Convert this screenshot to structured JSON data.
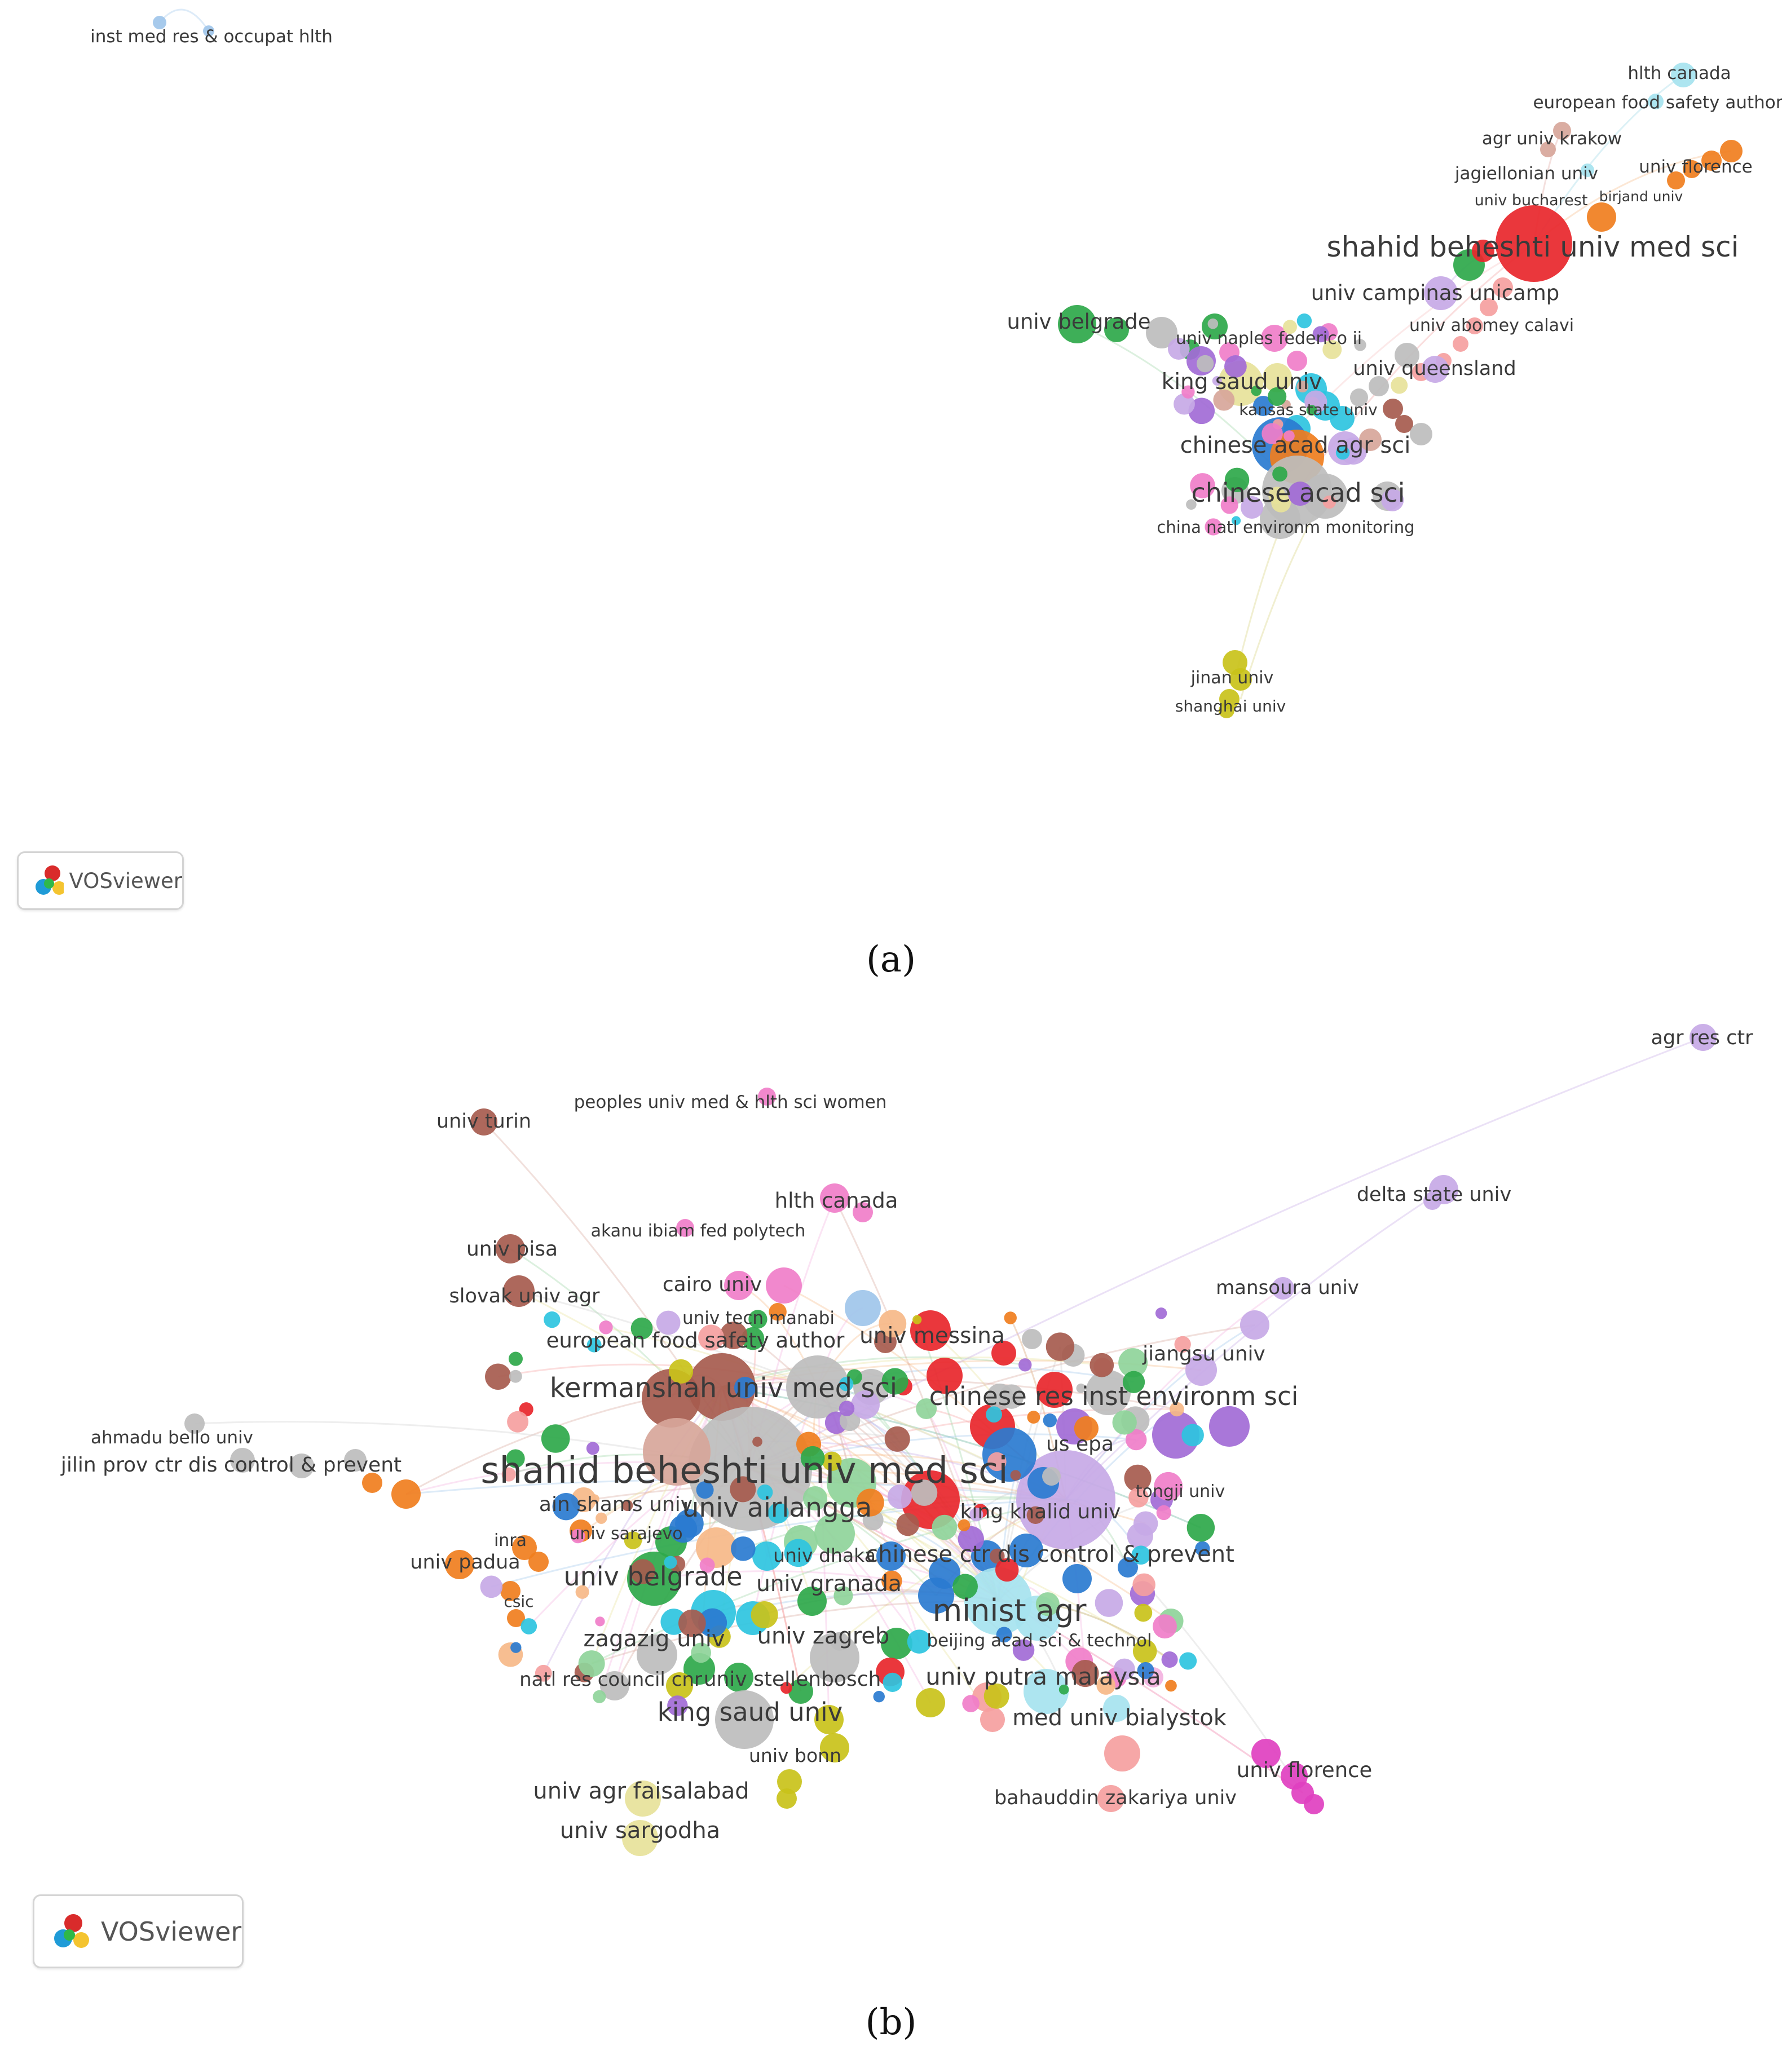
{
  "app_name": "VOSviewer",
  "panels": [
    {
      "id": "a",
      "caption": "(a)",
      "labels": [
        "inst med res & occupat hlth",
        "hlth canada",
        "european food safety author",
        "agr univ krakow",
        "jagiellonian univ",
        "univ florence",
        "univ bucharest",
        "birjand univ",
        "shahid beheshti univ med sci",
        "univ campinas unicamp",
        "univ belgrade",
        "univ abomey calavi",
        "univ naples federico ii",
        "king saud univ",
        "univ queensland",
        "kansas state univ",
        "chinese acad agr sci",
        "chinese acad sci",
        "china natl environm monitoring",
        "jinan univ",
        "shanghai univ"
      ]
    },
    {
      "id": "b",
      "caption": "(b)",
      "labels": [
        "agr res ctr",
        "univ turin",
        "peoples univ med & hlth sci women",
        "hlth canada",
        "delta state univ",
        "univ pisa",
        "akanu ibiam fed polytech",
        "mansoura univ",
        "cairo univ",
        "slovak univ agr",
        "univ tecn manabi",
        "european food safety author",
        "univ messina",
        "jiangsu univ",
        "kermanshah univ med sci",
        "chinese res inst environm sci",
        "ahmadu bello univ",
        "us epa",
        "jilin prov ctr dis control & prevent",
        "shahid beheshti univ med sci",
        "tongji univ",
        "ain shams univ",
        "univ airlangga",
        "inra",
        "king khalid univ",
        "univ sarajevo",
        "univ padua",
        "univ dhaka",
        "chinese ctr dis control & prevent",
        "univ belgrade",
        "csic",
        "univ granada",
        "minist agr",
        "zagazig univ",
        "univ zagreb",
        "beijing acad sci & technol",
        "natl res council cnr",
        "univ stellenbosch",
        "univ putra malaysia",
        "king saud univ",
        "med univ bialystok",
        "univ bonn",
        "univ florence",
        "univ agr faisalabad",
        "bahauddin zakariya univ",
        "univ sargodha"
      ]
    }
  ]
}
